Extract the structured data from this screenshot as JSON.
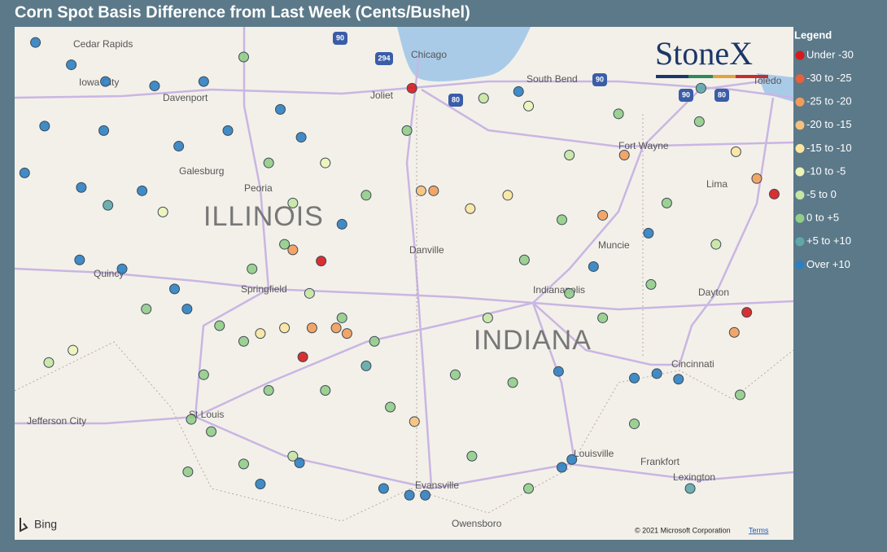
{
  "title": "Corn Spot Basis Difference from Last Week (Cents/Bushel)",
  "legend": {
    "title": "Legend",
    "items": [
      {
        "label": "Under -30",
        "color": "#d7191c"
      },
      {
        "label": "-30 to -25",
        "color": "#e8603c"
      },
      {
        "label": "-25 to -20",
        "color": "#f39c5a"
      },
      {
        "label": "-20 to -15",
        "color": "#f7c17b"
      },
      {
        "label": "-15 to -10",
        "color": "#fbe6a0"
      },
      {
        "label": "-10 to -5",
        "color": "#eef3b8"
      },
      {
        "label": "-5 to 0",
        "color": "#c6e6a4"
      },
      {
        "label": "0 to +5",
        "color": "#94cc8a"
      },
      {
        "label": "+5 to +10",
        "color": "#5fa8a8"
      },
      {
        "label": "Over +10",
        "color": "#2d7fc2"
      }
    ]
  },
  "logo": "StoneX",
  "map": {
    "lonlim": [
      -92.5,
      -83.15
    ],
    "latlim": [
      37.54,
      42.14
    ],
    "places": [
      "Cedar Rapids",
      "Iowa City",
      "Davenport",
      "Galesburg",
      "Peoria",
      "Quincy",
      "Springfield",
      "Chicago",
      "Joliet",
      "South Bend",
      "Fort Wayne",
      "Toledo",
      "Lima",
      "Muncie",
      "Indianapolis",
      "Dayton",
      "Danville",
      "Cincinnati",
      "St Louis",
      "Jefferson City",
      "Evansville",
      "Owensboro",
      "Louisville",
      "Frankfort",
      "Lexington"
    ],
    "states": [
      "ILLINOIS",
      "INDIANA"
    ],
    "highways": [
      "90",
      "294",
      "80",
      "90",
      "90",
      "80"
    ],
    "provider": "Bing",
    "copyright": "© 2021 Microsoft Corporation",
    "terms": "Terms"
  },
  "points": {
    "lon": [
      -92.25,
      -91.82,
      -91.41,
      -92.14,
      -91.43,
      -90.82,
      -90.23,
      -90.53,
      -90.97,
      -91.7,
      -91.72,
      -91.21,
      -90.58,
      -90.43,
      -89.06,
      -88.57,
      -89.31,
      -89.94,
      -92.38,
      -91.38,
      -89.75,
      -89.45,
      -89.16,
      -88.77,
      -88.28,
      -87.79,
      -89.65,
      -89.26,
      -88.96,
      -88.57,
      -88.18,
      -89.75,
      -90.23,
      -90.04,
      -89.45,
      -88.77,
      -88.28,
      -87.99,
      -90.38,
      -90.42,
      -89.75,
      -90.14,
      -90.92,
      -91.8,
      -92.09,
      -90.72,
      -89.16,
      -87.73,
      -88.82,
      -89.04,
      -83.71,
      -83.38,
      -89.16,
      -88.93,
      -88.64,
      -88.51,
      -87.47,
      -85.44,
      -85.18,
      -83.86,
      -83.59,
      -87.62,
      -87.7,
      -89.26,
      -89.55,
      -87.03,
      -86.58,
      -83.84,
      -86.87,
      -86.33,
      -85.84,
      -85.93,
      -86.38,
      -85.84,
      -85.44,
      -84.86,
      -84.67,
      -84.28,
      -84.08,
      -86.52,
      -87.21,
      -87.01,
      -86.33,
      -85.06,
      -83.79,
      -86.82,
      -85.25,
      -86.45,
      -85.97,
      -84.79,
      -84.53,
      -85.06,
      -85.55,
      -84.89,
      -85.93,
      -85.81,
      -87.76,
      -87.57,
      -88.07,
      -89.08,
      -89.55,
      -84.39,
      -84.26
    ],
    "lat": [
      42.0,
      41.8,
      41.65,
      41.25,
      41.21,
      41.61,
      41.65,
      41.07,
      40.67,
      40.7,
      40.05,
      39.97,
      39.79,
      39.61,
      41.15,
      40.37,
      41.4,
      41.21,
      40.83,
      40.54,
      41.87,
      40.92,
      40.56,
      40.92,
      40.63,
      41.21,
      39.97,
      40.19,
      39.75,
      39.53,
      39.32,
      39.32,
      39.02,
      39.46,
      38.88,
      38.88,
      39.1,
      38.73,
      38.62,
      38.15,
      38.22,
      38.51,
      39.61,
      39.24,
      39.13,
      40.48,
      38.29,
      41.59,
      40.04,
      39.18,
      39.58,
      40.64,
      40.14,
      39.44,
      39.44,
      39.39,
      40.67,
      40.45,
      40.99,
      39.4,
      40.78,
      40.67,
      38.6,
      39.44,
      39.39,
      40.51,
      40.63,
      41.02,
      41.5,
      41.43,
      40.99,
      40.41,
      40.05,
      39.75,
      39.53,
      39.83,
      40.56,
      41.29,
      40.19,
      38.95,
      39.02,
      38.29,
      38.0,
      38.58,
      38.84,
      39.53,
      41.36,
      41.56,
      39.05,
      39.03,
      38.98,
      38.99,
      39.99,
      40.29,
      38.19,
      38.26,
      37.94,
      37.94,
      38.0,
      38.23,
      38.04,
      38.0,
      41.59
    ],
    "class": [
      9,
      9,
      9,
      9,
      9,
      9,
      9,
      9,
      9,
      9,
      9,
      9,
      9,
      9,
      9,
      9,
      9,
      9,
      9,
      8,
      7,
      7,
      6,
      5,
      7,
      7,
      7,
      7,
      6,
      7,
      7,
      7,
      7,
      7,
      7,
      7,
      8,
      7,
      7,
      7,
      7,
      7,
      7,
      5,
      6,
      5,
      6,
      0,
      0,
      0,
      0,
      0,
      2,
      2,
      2,
      2,
      2,
      2,
      2,
      2,
      2,
      3,
      3,
      4,
      4,
      4,
      4,
      4,
      6,
      5,
      6,
      7,
      7,
      7,
      7,
      7,
      7,
      7,
      6,
      7,
      7,
      7,
      7,
      7,
      7,
      6,
      7,
      9,
      9,
      9,
      9,
      9,
      9,
      9,
      9,
      9,
      9,
      9,
      9,
      9,
      9,
      8,
      8
    ]
  }
}
